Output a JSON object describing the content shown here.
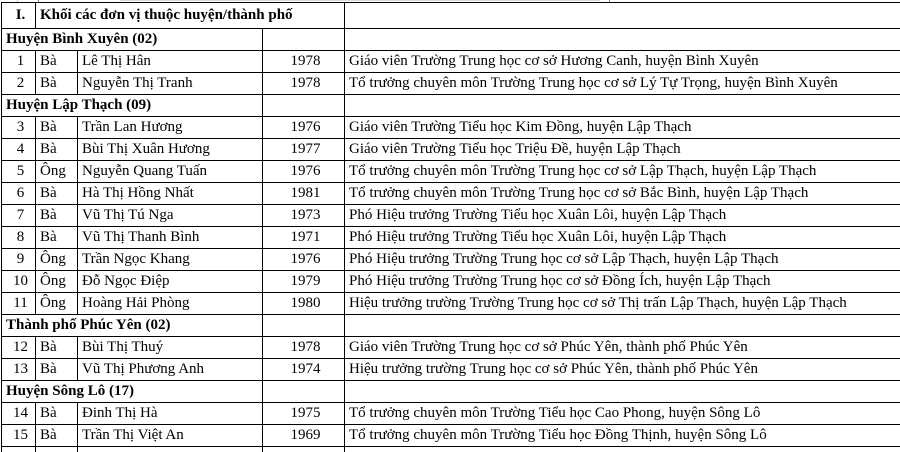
{
  "colors": {
    "border": "#000000",
    "text": "#000000",
    "background": "#ffffff",
    "gridline": "#dcdcdc"
  },
  "table": {
    "column_names": [
      "stt",
      "honorific",
      "name",
      "birth_year",
      "position"
    ],
    "rows": [
      {
        "type": "roman",
        "no": "I.",
        "title": "Khối các đơn vị thuộc huyện/thành phố"
      },
      {
        "type": "group",
        "title": "Huyện Bình Xuyên (02)"
      },
      {
        "type": "data",
        "no": "1",
        "honorific": "Bà",
        "name": "Lê Thị Hân",
        "year": "1978",
        "position": "Giáo viên Trường Trung học cơ sở Hương Canh, huyện Bình Xuyên"
      },
      {
        "type": "data",
        "no": "2",
        "honorific": "Bà",
        "name": "Nguyễn Thị Tranh",
        "year": "1978",
        "position": "Tổ trưởng chuyên môn Trường Trung học cơ sở Lý Tự Trọng, huyện Bình Xuyên"
      },
      {
        "type": "group",
        "title": "Huyện Lập Thạch (09)"
      },
      {
        "type": "data",
        "no": "3",
        "honorific": "Bà",
        "name": "Trần Lan Hương",
        "year": "1976",
        "position": "Giáo viên Trường Tiểu học Kim Đồng, huyện Lập Thạch"
      },
      {
        "type": "data",
        "no": "4",
        "honorific": "Bà",
        "name": "Bùi Thị Xuân Hương",
        "year": "1977",
        "position": "Giáo viên Trường Tiểu học Triệu Đề, huyện Lập Thạch"
      },
      {
        "type": "data",
        "no": "5",
        "honorific": "Ông",
        "name": "Nguyễn Quang Tuấn",
        "year": "1976",
        "position": "Tổ trưởng chuyên môn Trường Trung học cơ sở Lập Thạch, huyện Lập Thạch"
      },
      {
        "type": "data",
        "no": "6",
        "honorific": "Bà",
        "name": "Hà Thị Hồng Nhất",
        "year": "1981",
        "position": "Tổ trưởng chuyên môn Trường Trung học cơ sở Bắc Bình, huyện Lập Thạch"
      },
      {
        "type": "data",
        "no": "7",
        "honorific": "Bà",
        "name": "Vũ Thị Tú Nga",
        "year": "1973",
        "position": "Phó Hiệu trưởng Trường Tiểu học Xuân Lôi, huyện Lập Thạch"
      },
      {
        "type": "data",
        "no": "8",
        "honorific": "Bà",
        "name": "Vũ Thị Thanh Bình",
        "year": "1971",
        "position": "Phó Hiệu trưởng Trường Tiểu học Xuân Lôi, huyện Lập Thạch"
      },
      {
        "type": "data",
        "no": "9",
        "honorific": "Ông",
        "name": "Trần Ngọc Khang",
        "year": "1976",
        "position": "Phó Hiệu trưởng Trường Trung học cơ sở Lập Thạch, huyện Lập Thạch"
      },
      {
        "type": "data",
        "no": "10",
        "honorific": "Ông",
        "name": "Đỗ Ngọc Điệp",
        "year": "1979",
        "position": "Phó Hiệu trưởng Trường Trung học cơ sở Đồng Ích, huyện Lập Thạch"
      },
      {
        "type": "data",
        "no": "11",
        "honorific": "Ông",
        "name": "Hoàng Hải Phòng",
        "year": "1980",
        "position": "Hiệu trưởng trường Trường Trung học cơ sở Thị trấn Lập Thạch, huyện Lập Thạch"
      },
      {
        "type": "group",
        "title": "Thành phố Phúc Yên (02)"
      },
      {
        "type": "data",
        "no": "12",
        "honorific": "Bà",
        "name": "Bùi Thị Thuý",
        "year": "1978",
        "position": "Giáo viên Trường Trung học cơ sở Phúc Yên, thành phố Phúc Yên"
      },
      {
        "type": "data",
        "no": "13",
        "honorific": "Bà",
        "name": "Vũ Thị Phương Anh",
        "year": "1974",
        "position": "Hiệu trưởng trường Trung học cơ sở Phúc Yên, thành phố Phúc Yên"
      },
      {
        "type": "group",
        "title": "Huyện Sông Lô (17)"
      },
      {
        "type": "data",
        "no": "14",
        "honorific": "Bà",
        "name": "Đinh Thị Hà",
        "year": "1975",
        "position": "Tổ trưởng chuyên môn Trường Tiểu học Cao Phong, huyện Sông Lô"
      },
      {
        "type": "data",
        "no": "15",
        "honorific": "Bà",
        "name": "Trần Thị Việt An",
        "year": "1969",
        "position": "Tổ trưởng chuyên môn Trường Tiểu học Đồng Thịnh, huyện Sông Lô"
      }
    ]
  }
}
